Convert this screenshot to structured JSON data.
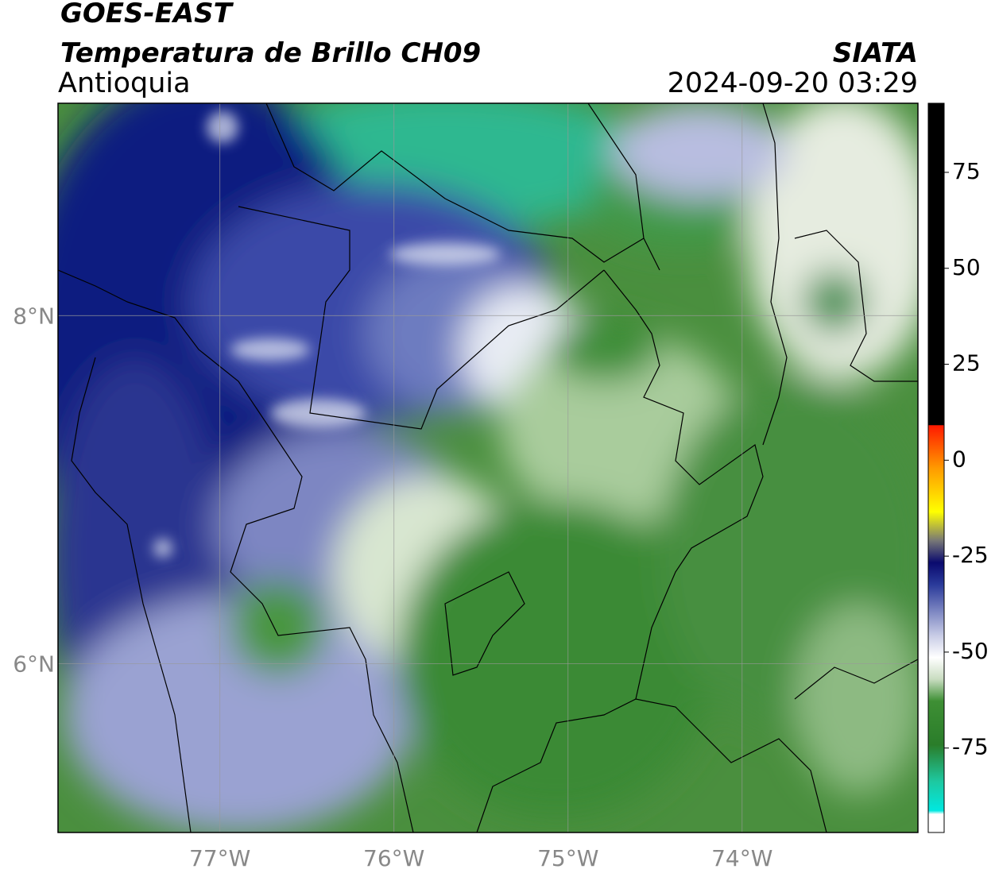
{
  "title": "GOES-EAST",
  "subtitle": "Temperatura de Brillo CH09",
  "region": "Antioquia",
  "source": "SIATA",
  "timestamp": "2024-09-20 03:29",
  "map": {
    "xlim": [
      -77.93,
      -72.99
    ],
    "ylim": [
      5.03,
      9.22
    ],
    "xticks": [
      {
        "value": -77,
        "label": "77°W"
      },
      {
        "value": -76,
        "label": "76°W"
      },
      {
        "value": -75,
        "label": "75°W"
      },
      {
        "value": -74,
        "label": "74°W"
      }
    ],
    "yticks": [
      {
        "value": 8,
        "label": "8°N"
      },
      {
        "value": 6,
        "label": "6°N"
      }
    ]
  },
  "colorbar": {
    "lim": [
      -97,
      93
    ],
    "ticks": [
      75,
      50,
      25,
      0,
      -25,
      -50,
      -75
    ]
  }
}
